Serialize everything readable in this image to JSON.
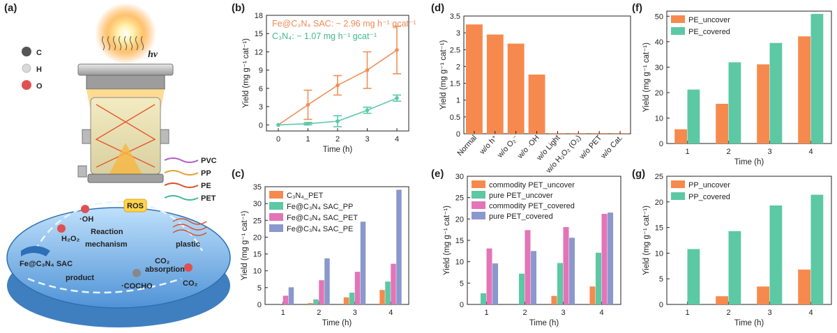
{
  "panel_labels": [
    "(a)",
    "(b)",
    "(c)",
    "(d)",
    "(e)",
    "(f)",
    "(g)"
  ],
  "schematic": {
    "atoms": [
      "C",
      "H",
      "O"
    ],
    "light": "hv",
    "plastics": [
      "PVC",
      "PP",
      "PE",
      "PET"
    ],
    "ros": "ROS",
    "oh": "·OH",
    "h2o2": "H₂O₂",
    "title_line1": "Reaction",
    "title_line2": "mechanism",
    "plastic": "plastic",
    "catalyst": "Fe@C₃N₄ SAC",
    "absorption_line1": "CO₂",
    "absorption_line2": "absorption",
    "co2": "CO₂",
    "cocho": "·COCHO",
    "product": "product",
    "colors": {
      "PVC": "#b05cc8",
      "PP": "#e0a030",
      "PE": "#d8502a",
      "PET": "#3fb89a",
      "dish": "#7fb9e8",
      "lamp": "#f7a534"
    }
  },
  "chart_data": [
    {
      "panel": "(b)",
      "type": "line",
      "x": [
        0,
        1,
        2,
        3,
        4
      ],
      "xlabel": "Time (h)",
      "ylabel": "Yield (mg g⁻¹ cat⁻¹)",
      "ylim": [
        -1,
        18
      ],
      "yticks": [
        0,
        3,
        6,
        9,
        12,
        15,
        18
      ],
      "annotations": [
        "Fe@C₃N₄ SAC: ~ 2.96 mg h⁻¹ gcat⁻¹",
        "C₃N₄: ~ 1.07 mg h⁻¹ gcat⁻¹"
      ],
      "series": [
        {
          "values": [
            0,
            3.3,
            6.5,
            9.0,
            12.3
          ],
          "error": [
            0,
            2.4,
            1.6,
            3.0,
            3.9
          ],
          "color": "#f0905a"
        },
        {
          "values": [
            0,
            0.2,
            0.6,
            2.4,
            4.4
          ],
          "error": [
            0,
            0.2,
            0.9,
            0.5,
            0.5
          ],
          "color": "#5cc8a8"
        }
      ]
    },
    {
      "panel": "(c)",
      "type": "bar",
      "categories": [
        "1",
        "2",
        "3",
        "4"
      ],
      "xlabel": "Time (h)",
      "ylabel": "Yield (mg g⁻¹ cat⁻¹)",
      "ylim": [
        0,
        35
      ],
      "yticks": [
        0,
        5,
        10,
        15,
        20,
        25,
        30,
        35
      ],
      "legend_position": "top-left",
      "series": [
        {
          "name": "C₃N₄_PET",
          "values": [
            0,
            0.4,
            2.1,
            4.3
          ],
          "color": "#f68a4e"
        },
        {
          "name": "Fe@C₃N₄ SAC_PP",
          "values": [
            0,
            1.5,
            3.5,
            6.8
          ],
          "color": "#5cc8a4"
        },
        {
          "name": "Fe@C₃N₄ SAC_PET",
          "values": [
            2.6,
            7.2,
            9.7,
            12.1
          ],
          "color": "#e374b8"
        },
        {
          "name": "Fe@C₃N₄ SAC_PE",
          "values": [
            5.1,
            13.7,
            24.6,
            34.1
          ],
          "color": "#8a98cc"
        }
      ]
    },
    {
      "panel": "(d)",
      "type": "bar",
      "categories": [
        "Normal",
        "w/o h⁺",
        "w/o O₂⁻",
        "w/o ·OH",
        "w/o Light",
        "w/o H₂O₂ (O₂)",
        "w/o PET",
        "w/o Cat."
      ],
      "ylabel": "Yield (mg g⁻¹ cat⁻¹)",
      "ylim": [
        0,
        3.5
      ],
      "yticks": [
        0,
        0.5,
        1.0,
        1.5,
        2.0,
        2.5,
        3.0,
        3.5
      ],
      "values": [
        3.25,
        2.95,
        2.68,
        1.76,
        0.02,
        0.02,
        0.02,
        0.02
      ],
      "color": "#f68a4e"
    },
    {
      "panel": "(e)",
      "type": "bar",
      "categories": [
        "1",
        "2",
        "3",
        "4"
      ],
      "xlabel": "Time (h)",
      "ylabel": "Yield (mg g⁻¹ cat⁻¹)",
      "ylim": [
        0,
        30
      ],
      "yticks": [
        0,
        5,
        10,
        15,
        20,
        25,
        30
      ],
      "legend_position": "top-left",
      "series": [
        {
          "name": "commodity PET_uncover",
          "values": [
            0,
            0,
            2.0,
            4.2
          ],
          "color": "#f68a4e"
        },
        {
          "name": "pure PET_uncover",
          "values": [
            2.6,
            7.2,
            9.7,
            12.1
          ],
          "color": "#5cc8a4"
        },
        {
          "name": "commodity PET_covered",
          "values": [
            13.1,
            17.4,
            18.1,
            21.2
          ],
          "color": "#e374b8"
        },
        {
          "name": "pure PET_covered",
          "values": [
            9.6,
            12.5,
            15.6,
            21.5
          ],
          "color": "#8a98cc"
        }
      ]
    },
    {
      "panel": "(f)",
      "type": "bar",
      "categories": [
        "1",
        "2",
        "3",
        "4"
      ],
      "xlabel": "Time (h)",
      "ylabel": "Yield (mg g⁻¹ cat⁻¹)",
      "ylim": [
        0,
        52
      ],
      "yticks": [
        0,
        10,
        20,
        30,
        40,
        50
      ],
      "legend_position": "top-left",
      "series": [
        {
          "name": "PE_uncover",
          "values": [
            5.6,
            15.6,
            31.1,
            42.1
          ],
          "color": "#f68a4e"
        },
        {
          "name": "PE_covered",
          "values": [
            21.2,
            31.9,
            39.5,
            50.9
          ],
          "color": "#5cc8a4"
        }
      ]
    },
    {
      "panel": "(g)",
      "type": "bar",
      "categories": [
        "1",
        "2",
        "3",
        "4"
      ],
      "xlabel": "Time (h)",
      "ylabel": "Yield (mg g⁻¹ cat⁻¹)",
      "ylim": [
        0,
        25
      ],
      "yticks": [
        0,
        5,
        10,
        15,
        20,
        25
      ],
      "legend_position": "top-left",
      "series": [
        {
          "name": "PP_uncover",
          "values": [
            0,
            1.6,
            3.5,
            6.8
          ],
          "color": "#f68a4e"
        },
        {
          "name": "PP_covered",
          "values": [
            10.8,
            14.3,
            19.3,
            21.4
          ],
          "color": "#5cc8a4"
        }
      ]
    }
  ]
}
